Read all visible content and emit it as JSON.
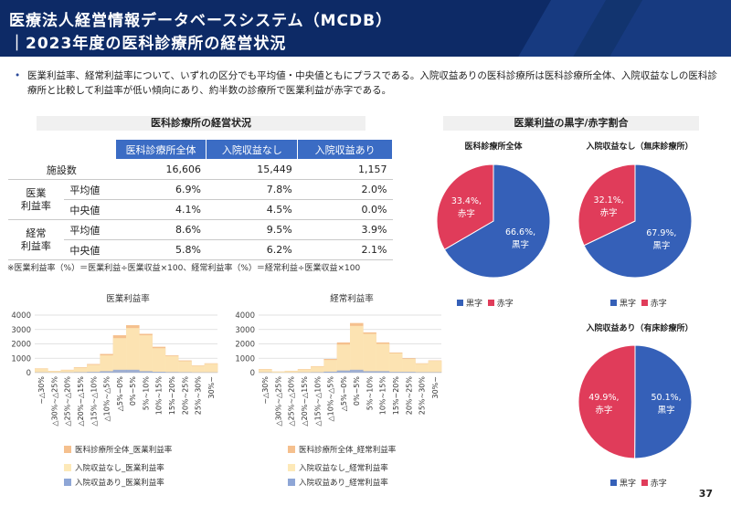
{
  "header": {
    "title_line1": "医療法人経営情報データベースシステム（MCDB）",
    "title_line2": "｜2023年度の医科診療所の経営状況"
  },
  "summary": {
    "bullet": "•",
    "text": "医業利益率、経常利益率について、いずれの区分でも平均値・中央値ともにプラスである。入院収益ありの医科診療所は医科診療所全体、入院収益なしの医科診療所と比較して利益率が低い傾向にあり、約半数の診療所で医業利益が赤字である。"
  },
  "table_section": {
    "title": "医科診療所の経営状況",
    "columns": [
      "医科診療所全体",
      "入院収益なし",
      "入院収益あり"
    ],
    "facility_row": {
      "label": "施設数",
      "values": [
        "16,606",
        "15,449",
        "1,157"
      ]
    },
    "groups": [
      {
        "label": "医業\n利益率",
        "rows": [
          {
            "label": "平均値",
            "values": [
              "6.9%",
              "7.8%",
              "2.0%"
            ]
          },
          {
            "label": "中央値",
            "values": [
              "4.1%",
              "4.5%",
              "0.0%"
            ]
          }
        ]
      },
      {
        "label": "経常\n利益率",
        "rows": [
          {
            "label": "平均値",
            "values": [
              "8.6%",
              "9.5%",
              "3.9%"
            ]
          },
          {
            "label": "中央値",
            "values": [
              "5.8%",
              "6.2%",
              "2.1%"
            ]
          }
        ]
      }
    ],
    "note": "※医業利益率（%）＝医業利益÷医業収益×100、経常利益率（%）＝経常利益÷医業収益×100"
  },
  "pie_section": {
    "title": "医業利益の黒字/赤字割合"
  },
  "colors": {
    "header_bg": "#0d2a66",
    "table_header": "#3b6cc4",
    "pie_black": "#3560b8",
    "pie_red": "#e03c5a",
    "series_all": "#f5c08e",
    "series_nohosp": "#fde9b8",
    "series_hosp": "#8ea6d6"
  },
  "chart_data": [
    {
      "type": "area",
      "title": "医業利益率",
      "categories": [
        "~△30%",
        "△30%~△25%",
        "△25%~△20%",
        "△20%~△15%",
        "△15%~△10%",
        "△10%~△5%",
        "△5%~0%",
        "0%~5%",
        "5%~10%",
        "10%~15%",
        "15%~20%",
        "20%~25%",
        "25%~30%",
        "30%~"
      ],
      "ylim": [
        0,
        4000
      ],
      "yticks": [
        "0",
        "1000",
        "2000",
        "3000",
        "4000"
      ],
      "grid": true,
      "legend_position": "bottom",
      "series": [
        {
          "name": "医科診療所全体_医業利益率",
          "values": [
            300,
            120,
            200,
            380,
            600,
            1300,
            2600,
            3300,
            2700,
            1800,
            1200,
            850,
            500,
            650
          ]
        },
        {
          "name": "入院収益なし_医業利益率",
          "values": [
            280,
            110,
            180,
            350,
            550,
            1200,
            2400,
            3100,
            2600,
            1700,
            1150,
            800,
            470,
            620
          ]
        },
        {
          "name": "入院収益あり_医業利益率",
          "values": [
            20,
            10,
            20,
            30,
            50,
            100,
            200,
            200,
            100,
            60,
            40,
            30,
            20,
            20
          ]
        }
      ]
    },
    {
      "type": "area",
      "title": "経常利益率",
      "categories": [
        "~△30%",
        "△30%~△25%",
        "△25%~△20%",
        "△20%~△15%",
        "△15%~△10%",
        "△10%~△5%",
        "△5%~0%",
        "0%~5%",
        "5%~10%",
        "10%~15%",
        "15%~20%",
        "20%~25%",
        "25%~30%",
        "30%~"
      ],
      "ylim": [
        0,
        4000
      ],
      "yticks": [
        "0",
        "1000",
        "2000",
        "3000",
        "4000"
      ],
      "grid": true,
      "legend_position": "bottom",
      "series": [
        {
          "name": "医科診療所全体_経常利益率",
          "values": [
            250,
            80,
            130,
            250,
            450,
            950,
            2100,
            3450,
            2800,
            2100,
            1400,
            1000,
            650,
            850
          ]
        },
        {
          "name": "入院収益なし_経常利益率",
          "values": [
            230,
            75,
            120,
            230,
            420,
            880,
            1950,
            3250,
            2700,
            2000,
            1350,
            950,
            620,
            820
          ]
        },
        {
          "name": "入院収益あり_経常利益率",
          "values": [
            20,
            5,
            10,
            20,
            30,
            70,
            150,
            200,
            100,
            100,
            50,
            50,
            30,
            30
          ]
        }
      ]
    },
    {
      "type": "pie",
      "title": "医科診療所全体",
      "slices": [
        {
          "name": "黒字",
          "value": 66.6,
          "label": "66.6%,"
        },
        {
          "name": "赤字",
          "value": 33.4,
          "label": "33.4%,"
        }
      ],
      "legend": [
        "黒字",
        "赤字"
      ]
    },
    {
      "type": "pie",
      "title": "入院収益なし（無床診療所）",
      "slices": [
        {
          "name": "黒字",
          "value": 67.9,
          "label": "67.9%,"
        },
        {
          "name": "赤字",
          "value": 32.1,
          "label": "32.1%,"
        }
      ],
      "legend": [
        "黒字",
        "赤字"
      ]
    },
    {
      "type": "pie",
      "title": "入院収益あり（有床診療所）",
      "slices": [
        {
          "name": "黒字",
          "value": 50.1,
          "label": "50.1%,"
        },
        {
          "name": "赤字",
          "value": 49.9,
          "label": "49.9%,"
        }
      ],
      "legend": [
        "黒字",
        "赤字"
      ]
    }
  ],
  "page_number": "37"
}
